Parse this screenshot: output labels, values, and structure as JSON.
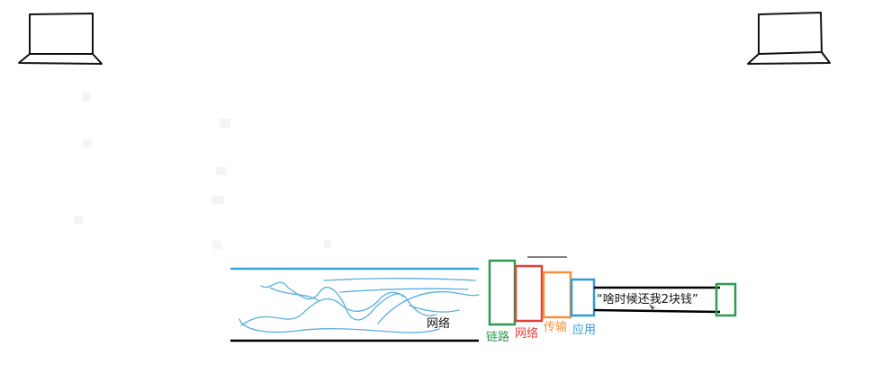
{
  "diagram": {
    "network_cloud_label": "网络",
    "layers": [
      {
        "name": "link",
        "label": "链路",
        "color": "#2e9a52"
      },
      {
        "name": "network",
        "label": "网络",
        "color": "#e0413a"
      },
      {
        "name": "transport",
        "label": "传输",
        "color": "#f3923b"
      },
      {
        "name": "application",
        "label": "应用",
        "color": "#2f9bd6"
      }
    ],
    "message": "“啥时候还我2块钱”",
    "colors": {
      "pipe_top": "#3aa3e0",
      "pipe_bottom": "#000000",
      "squiggles": "#5aaedc",
      "tail_box": "#2e9a52",
      "ink": "#111111"
    },
    "icons": [
      "laptop-left-icon",
      "laptop-right-icon"
    ]
  }
}
